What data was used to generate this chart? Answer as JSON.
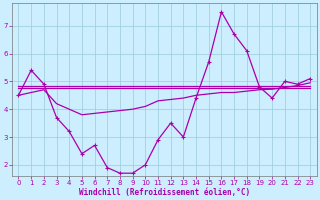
{
  "xlabel": "Windchill (Refroidissement éolien,°C)",
  "bg_color": "#cceeff",
  "line_color": "#aa00aa",
  "grid_color": "#99ccdd",
  "xlim": [
    -0.5,
    23.5
  ],
  "ylim": [
    1.6,
    7.8
  ],
  "xticks": [
    0,
    1,
    2,
    3,
    4,
    5,
    6,
    7,
    8,
    9,
    10,
    11,
    12,
    13,
    14,
    15,
    16,
    17,
    18,
    19,
    20,
    21,
    22,
    23
  ],
  "yticks": [
    2,
    3,
    4,
    5,
    6,
    7
  ],
  "s1_x": [
    0,
    1,
    2,
    3,
    4,
    5,
    6,
    7,
    8,
    9,
    10,
    11,
    12,
    13,
    14,
    15,
    16,
    17,
    18,
    19,
    20,
    21,
    22,
    23
  ],
  "s1_y": [
    4.5,
    5.4,
    4.9,
    3.7,
    3.2,
    2.4,
    2.7,
    1.9,
    1.7,
    1.7,
    2.0,
    2.9,
    3.5,
    3.0,
    4.4,
    5.7,
    7.5,
    6.7,
    6.1,
    4.8,
    4.4,
    5.0,
    4.9,
    5.1
  ],
  "s2_x": [
    0,
    1,
    2,
    3,
    4,
    5,
    6,
    7,
    8,
    9,
    10,
    11,
    12,
    13,
    14,
    15,
    16,
    17,
    18,
    19,
    20,
    21,
    22,
    23
  ],
  "s2_y": [
    4.85,
    4.85,
    4.85,
    4.85,
    4.85,
    4.85,
    4.85,
    4.85,
    4.85,
    4.85,
    4.85,
    4.85,
    4.85,
    4.85,
    4.85,
    4.85,
    4.85,
    4.85,
    4.85,
    4.85,
    4.85,
    4.85,
    4.85,
    4.85
  ],
  "s3_x": [
    0,
    1,
    2,
    3,
    4,
    5,
    6,
    7,
    8,
    9,
    10,
    11,
    12,
    13,
    14,
    15,
    16,
    17,
    18,
    19,
    20,
    21,
    22,
    23
  ],
  "s3_y": [
    4.75,
    4.75,
    4.75,
    4.75,
    4.75,
    4.75,
    4.75,
    4.75,
    4.75,
    4.75,
    4.75,
    4.75,
    4.75,
    4.75,
    4.75,
    4.75,
    4.75,
    4.75,
    4.75,
    4.75,
    4.75,
    4.75,
    4.75,
    4.75
  ],
  "s4_x": [
    0,
    1,
    2,
    3,
    4,
    5,
    6,
    7,
    8,
    9,
    10,
    11,
    12,
    13,
    14,
    15,
    16,
    17,
    18,
    19,
    20,
    21,
    22,
    23
  ],
  "s4_y": [
    4.5,
    4.6,
    4.7,
    4.2,
    4.0,
    3.8,
    3.85,
    3.9,
    3.95,
    4.0,
    4.1,
    4.3,
    4.35,
    4.4,
    4.5,
    4.55,
    4.6,
    4.6,
    4.65,
    4.7,
    4.72,
    4.78,
    4.85,
    4.95
  ]
}
